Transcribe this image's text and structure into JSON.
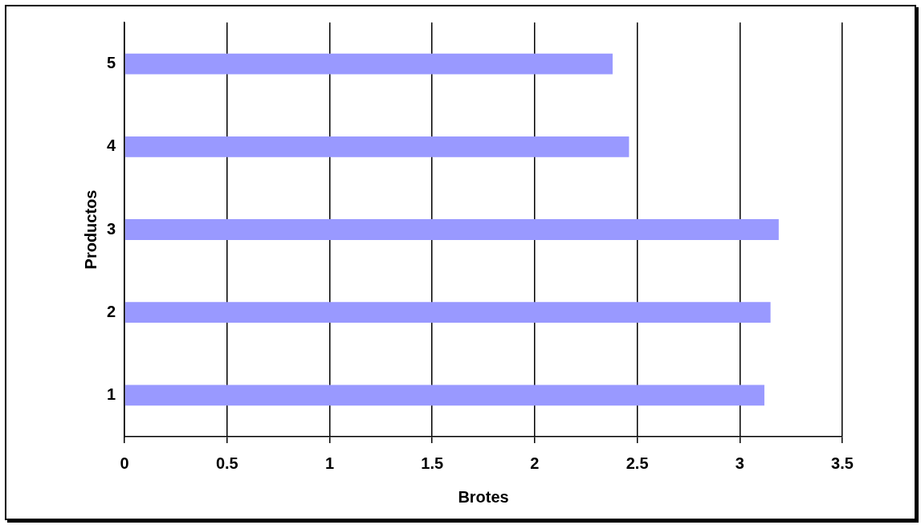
{
  "chart_data": {
    "type": "bar",
    "orientation": "horizontal",
    "xlabel": "Brotes",
    "ylabel": "Productos",
    "categories": [
      "5",
      "4",
      "3",
      "2",
      "1"
    ],
    "values": [
      2.38,
      2.46,
      3.19,
      3.15,
      3.12
    ],
    "color": "#9999ff",
    "xlim": [
      0,
      3.5
    ],
    "xticks": [
      0,
      0.5,
      1,
      1.5,
      2,
      2.5,
      3,
      3.5
    ],
    "grid": "x",
    "legend": false
  }
}
